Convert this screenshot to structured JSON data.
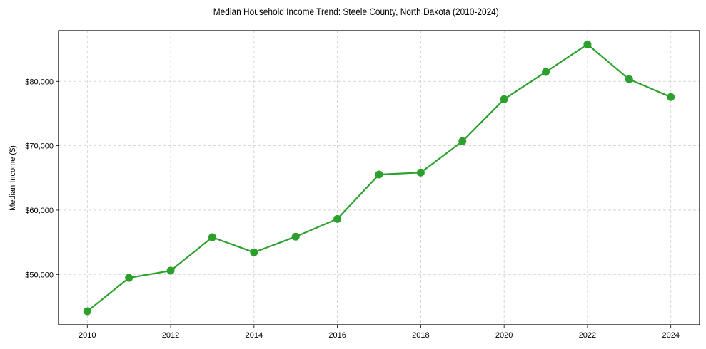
{
  "chart_data": {
    "type": "line",
    "title": "Median Household Income Trend: Steele County, North Dakota (2010-2024)",
    "xlabel": "",
    "ylabel": "Median Income ($)",
    "x": [
      2010,
      2011,
      2012,
      2013,
      2014,
      2015,
      2016,
      2017,
      2018,
      2019,
      2020,
      2021,
      2022,
      2023,
      2024
    ],
    "series": [
      {
        "name": "Median Household Income",
        "values": [
          44275,
          49470,
          50580,
          55780,
          53430,
          55870,
          58630,
          65530,
          65830,
          70700,
          77230,
          81470,
          85760,
          80330,
          77570
        ],
        "color": "#2ca02c",
        "marker": "circle"
      }
    ],
    "xticks": [
      2010,
      2012,
      2014,
      2016,
      2018,
      2020,
      2022,
      2024
    ],
    "xtick_labels": [
      "2010",
      "2012",
      "2014",
      "2016",
      "2018",
      "2020",
      "2022",
      "2024"
    ],
    "yticks": [
      50000,
      60000,
      70000,
      80000
    ],
    "ytick_labels": [
      "$50,000",
      "$60,000",
      "$70,000",
      "$80,000"
    ],
    "xlim": [
      2009.31,
      2024.69
    ],
    "ylim": [
      42170,
      87890
    ],
    "grid": true,
    "grid_style": "dashed",
    "legend": null
  }
}
